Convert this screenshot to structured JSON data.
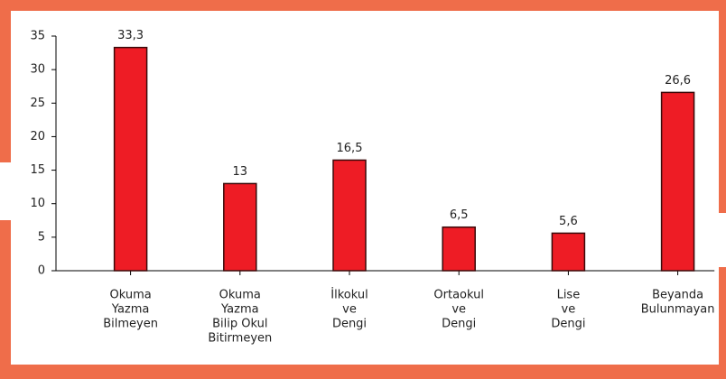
{
  "chart_data": {
    "type": "bar",
    "categories": [
      [
        "Okuma",
        "Yazma",
        "Bilmeyen"
      ],
      [
        "Okuma",
        "Yazma",
        "Bilip Okul",
        "Bitirmeyen"
      ],
      [
        "İlkokul",
        "ve",
        "Dengi"
      ],
      [
        "Ortaokul",
        "ve",
        "Dengi"
      ],
      [
        "Lise",
        "ve",
        "Dengi"
      ],
      [
        "Beyanda",
        "Bulunmayan"
      ]
    ],
    "values": [
      33.3,
      13,
      16.5,
      6.5,
      5.6,
      26.6
    ],
    "value_labels": [
      "33,3",
      "13",
      "16,5",
      "6,5",
      "5,6",
      "26,6"
    ],
    "color": "#ee1c25",
    "ylim": [
      0,
      35
    ],
    "yticks": [
      0,
      5,
      10,
      15,
      20,
      25,
      30,
      35
    ],
    "grid": false
  }
}
